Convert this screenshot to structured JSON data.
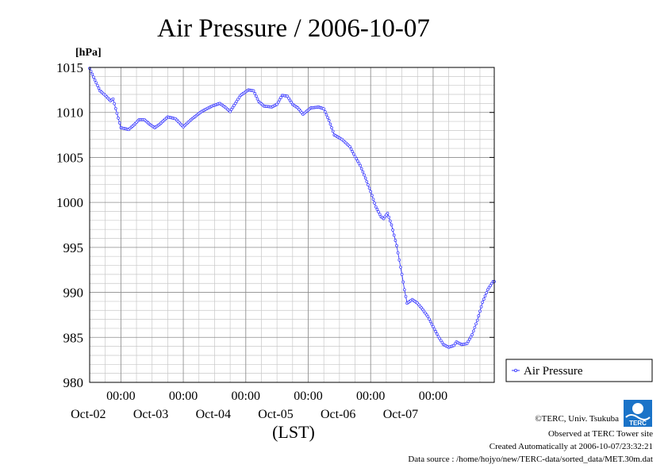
{
  "chart_data": {
    "type": "line",
    "title": "Air Pressure / 2006-10-07",
    "y_unit": "[hPa]",
    "xlabel": "(LST)",
    "ylim": [
      980,
      1015
    ],
    "y_ticks": [
      980,
      985,
      990,
      995,
      1000,
      1005,
      1010,
      1015
    ],
    "xlim": [
      "2006-10-01 12:00",
      "2006-10-07 23:30"
    ],
    "x_ticks": [
      {
        "time": "2006-10-02 00:00",
        "label": "00:00",
        "date": "Oct-02"
      },
      {
        "time": "2006-10-03 00:00",
        "label": "00:00",
        "date": "Oct-03"
      },
      {
        "time": "2006-10-04 00:00",
        "label": "00:00",
        "date": "Oct-04"
      },
      {
        "time": "2006-10-05 00:00",
        "label": "00:00",
        "date": "Oct-05"
      },
      {
        "time": "2006-10-06 00:00",
        "label": "00:00",
        "date": "Oct-06"
      },
      {
        "time": "2006-10-07 00:00",
        "label": "00:00",
        "date": "Oct-07"
      }
    ],
    "grid": true,
    "legend": {
      "position": "right",
      "entries": [
        "Air Pressure"
      ]
    },
    "series": [
      {
        "name": "Air Pressure",
        "color": "#3333ff",
        "points": [
          [
            "2006-10-01 12:00",
            1014.9
          ],
          [
            "2006-10-01 14:00",
            1013.6
          ],
          [
            "2006-10-01 16:00",
            1012.4
          ],
          [
            "2006-10-01 18:00",
            1011.9
          ],
          [
            "2006-10-01 20:00",
            1011.3
          ],
          [
            "2006-10-01 21:00",
            1011.5
          ],
          [
            "2006-10-02 00:00",
            1008.3
          ],
          [
            "2006-10-02 03:00",
            1008.1
          ],
          [
            "2006-10-02 05:00",
            1008.6
          ],
          [
            "2006-10-02 07:00",
            1009.2
          ],
          [
            "2006-10-02 09:00",
            1009.2
          ],
          [
            "2006-10-02 11:00",
            1008.7
          ],
          [
            "2006-10-02 13:00",
            1008.3
          ],
          [
            "2006-10-02 15:00",
            1008.7
          ],
          [
            "2006-10-02 18:00",
            1009.5
          ],
          [
            "2006-10-02 21:00",
            1009.3
          ],
          [
            "2006-10-03 00:00",
            1008.4
          ],
          [
            "2006-10-03 03:00",
            1009.2
          ],
          [
            "2006-10-03 07:00",
            1010.1
          ],
          [
            "2006-10-03 11:00",
            1010.7
          ],
          [
            "2006-10-03 14:00",
            1011.0
          ],
          [
            "2006-10-03 16:00",
            1010.6
          ],
          [
            "2006-10-03 18:00",
            1010.1
          ],
          [
            "2006-10-03 20:00",
            1011.0
          ],
          [
            "2006-10-03 22:00",
            1011.9
          ],
          [
            "2006-10-04 01:00",
            1012.5
          ],
          [
            "2006-10-04 03:00",
            1012.4
          ],
          [
            "2006-10-04 05:00",
            1011.2
          ],
          [
            "2006-10-04 07:00",
            1010.7
          ],
          [
            "2006-10-04 10:00",
            1010.6
          ],
          [
            "2006-10-04 12:00",
            1010.9
          ],
          [
            "2006-10-04 14:00",
            1011.9
          ],
          [
            "2006-10-04 16:00",
            1011.8
          ],
          [
            "2006-10-04 18:00",
            1010.9
          ],
          [
            "2006-10-04 20:00",
            1010.5
          ],
          [
            "2006-10-04 22:00",
            1009.8
          ],
          [
            "2006-10-05 01:00",
            1010.5
          ],
          [
            "2006-10-05 04:00",
            1010.6
          ],
          [
            "2006-10-05 06:00",
            1010.4
          ],
          [
            "2006-10-05 08:00",
            1009.1
          ],
          [
            "2006-10-05 10:00",
            1007.5
          ],
          [
            "2006-10-05 13:00",
            1007.0
          ],
          [
            "2006-10-05 16:00",
            1006.2
          ],
          [
            "2006-10-05 18:00",
            1005.1
          ],
          [
            "2006-10-05 20:00",
            1004.1
          ],
          [
            "2006-10-05 22:00",
            1002.7
          ],
          [
            "2006-10-06 00:00",
            1001.2
          ],
          [
            "2006-10-06 02:00",
            999.5
          ],
          [
            "2006-10-06 04:00",
            998.4
          ],
          [
            "2006-10-06 05:00",
            998.2
          ],
          [
            "2006-10-06 06:30",
            998.8
          ],
          [
            "2006-10-06 08:00",
            997.5
          ],
          [
            "2006-10-06 10:00",
            995.2
          ],
          [
            "2006-10-06 12:00",
            992.0
          ],
          [
            "2006-10-06 13:00",
            990.3
          ],
          [
            "2006-10-06 14:00",
            988.8
          ],
          [
            "2006-10-06 16:00",
            989.2
          ],
          [
            "2006-10-06 18:00",
            988.8
          ],
          [
            "2006-10-06 20:00",
            988.1
          ],
          [
            "2006-10-06 22:00",
            987.3
          ],
          [
            "2006-10-07 00:00",
            986.2
          ],
          [
            "2006-10-07 02:00",
            985.1
          ],
          [
            "2006-10-07 04:00",
            984.2
          ],
          [
            "2006-10-07 06:00",
            983.9
          ],
          [
            "2006-10-07 08:00",
            984.1
          ],
          [
            "2006-10-07 09:00",
            984.5
          ],
          [
            "2006-10-07 11:00",
            984.2
          ],
          [
            "2006-10-07 13:00",
            984.3
          ],
          [
            "2006-10-07 15:00",
            985.3
          ],
          [
            "2006-10-07 17:00",
            986.9
          ],
          [
            "2006-10-07 19:00",
            988.9
          ],
          [
            "2006-10-07 21:00",
            990.3
          ],
          [
            "2006-10-07 23:00",
            991.2
          ],
          [
            "2006-10-07 23:30",
            991.2
          ]
        ]
      }
    ]
  },
  "credits": {
    "copyright": "©TERC, Univ. Tsukuba",
    "observed": "Observed at TERC Tower site",
    "created": "Created Automatically at 2006-10-07/23:32:21",
    "source": "Data source : /home/hojyo/new/TERC-data/sorted_data/MET.30m.dat",
    "logo_text": "TERC"
  }
}
